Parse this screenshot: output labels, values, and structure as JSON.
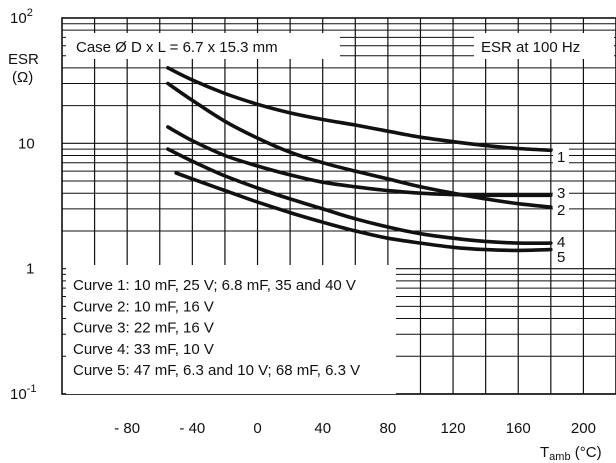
{
  "chart_data": {
    "type": "line",
    "title": "Case Ø D x L = 6.7 x 15.3 mm",
    "subtitle": "ESR at 100 Hz",
    "ylabel": "ESR",
    "ylabel_unit": "(Ω)",
    "xlabel_main": "T",
    "xlabel_sub": "amb",
    "xlabel_unit": "(°C)",
    "xlim": [
      -120,
      220
    ],
    "ylim": [
      0.1,
      100
    ],
    "yscale": "log",
    "grid": true,
    "x_ticks": [
      {
        "value": -80,
        "label": "- 80"
      },
      {
        "value": -40,
        "label": "- 40"
      },
      {
        "value": 0,
        "label": "0"
      },
      {
        "value": 40,
        "label": "40"
      },
      {
        "value": 80,
        "label": "80"
      },
      {
        "value": 120,
        "label": "120"
      },
      {
        "value": 160,
        "label": "160"
      },
      {
        "value": 200,
        "label": "200"
      }
    ],
    "y_ticks": [
      {
        "value": 100,
        "label": "10",
        "sup": "2"
      },
      {
        "value": 10,
        "label": "10",
        "sup": ""
      },
      {
        "value": 1,
        "label": "1",
        "sup": ""
      },
      {
        "value": 0.1,
        "label": "10",
        "sup": "-1"
      }
    ],
    "series": [
      {
        "name": "1",
        "x": [
          -55,
          -40,
          -20,
          0,
          20,
          40,
          60,
          80,
          100,
          120,
          140,
          160,
          180
        ],
        "y": [
          40,
          32,
          25,
          20.5,
          17.5,
          15.5,
          14,
          12.5,
          11.2,
          10.3,
          9.6,
          9.1,
          8.8
        ]
      },
      {
        "name": "2",
        "x": [
          -55,
          -40,
          -20,
          0,
          20,
          40,
          60,
          80,
          100,
          120,
          140,
          160,
          180
        ],
        "y": [
          30,
          22,
          15,
          11,
          8.5,
          7.0,
          6.0,
          5.2,
          4.5,
          4.0,
          3.6,
          3.3,
          3.1
        ]
      },
      {
        "name": "3",
        "x": [
          -55,
          -40,
          -20,
          0,
          20,
          40,
          60,
          80,
          100,
          120,
          140,
          160,
          180
        ],
        "y": [
          13.5,
          10.5,
          8.0,
          6.6,
          5.6,
          4.9,
          4.5,
          4.2,
          4.0,
          3.9,
          3.85,
          3.85,
          3.85
        ]
      },
      {
        "name": "4",
        "x": [
          -55,
          -40,
          -20,
          0,
          20,
          40,
          60,
          80,
          100,
          120,
          140,
          160,
          180
        ],
        "y": [
          9.0,
          7.2,
          5.5,
          4.4,
          3.6,
          3.0,
          2.5,
          2.15,
          1.9,
          1.75,
          1.65,
          1.6,
          1.6
        ]
      },
      {
        "name": "5",
        "x": [
          -50,
          -40,
          -20,
          0,
          20,
          40,
          60,
          80,
          100,
          120,
          140,
          160,
          180
        ],
        "y": [
          5.8,
          5.2,
          4.2,
          3.4,
          2.8,
          2.35,
          2.0,
          1.75,
          1.6,
          1.48,
          1.42,
          1.4,
          1.42
        ]
      }
    ],
    "legend_entries": [
      "Curve 1: 10 mF, 25 V; 6.8 mF, 35 and 40 V",
      "Curve 2: 10 mF, 16 V",
      "Curve 3: 22 mF, 16 V",
      "Curve 4: 33 mF, 10 V",
      "Curve 5: 47 mF, 6.3 and 10 V; 68 mF, 6.3 V"
    ],
    "legend_placement": "bottom-left",
    "curve_labels": [
      "1",
      "3",
      "2",
      "4",
      "5"
    ]
  }
}
